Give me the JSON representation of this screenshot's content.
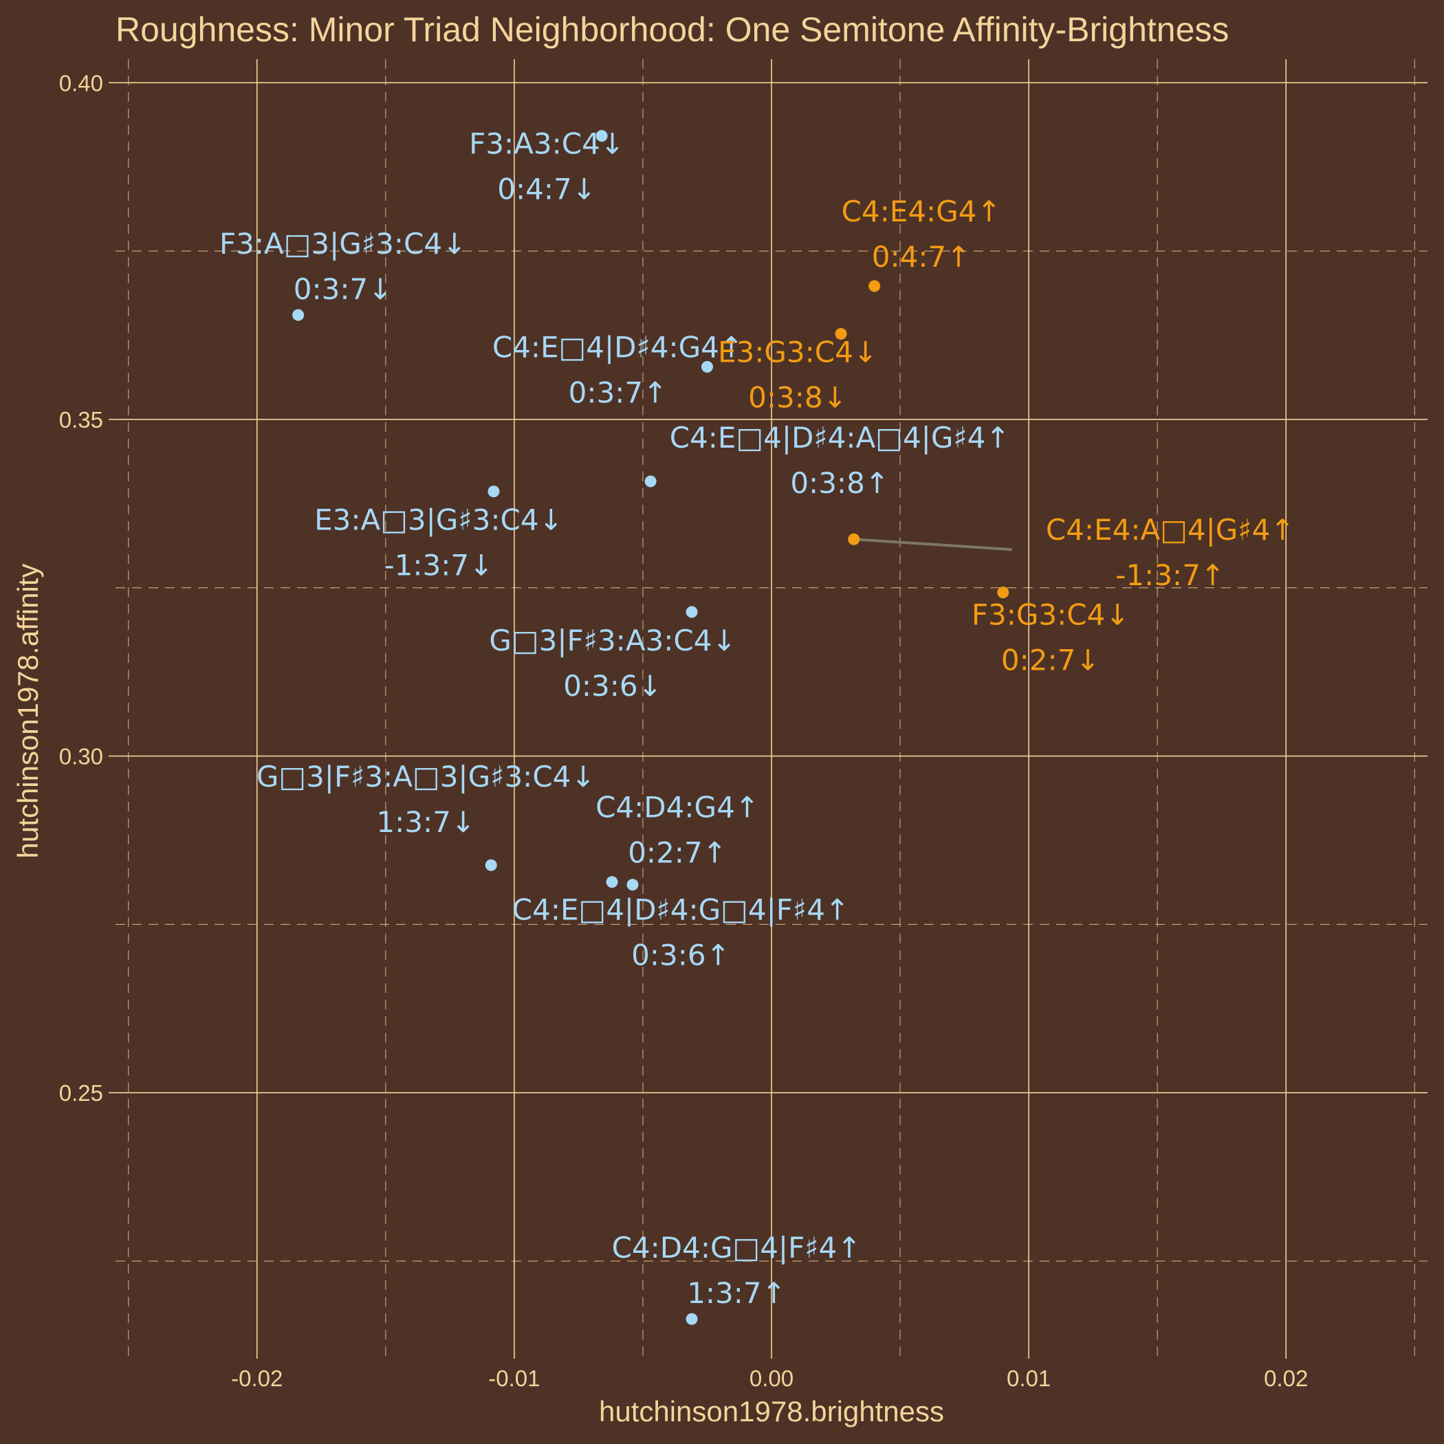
{
  "chart_data": {
    "type": "scatter",
    "title": "Roughness: Minor Triad Neighborhood: One Semitone Affinity-Brightness",
    "xlabel": "hutchinson1978.brightness",
    "ylabel": "hutchinson1978.affinity",
    "xlim": [
      -0.0255,
      0.0255
    ],
    "ylim": [
      0.2105,
      0.4035
    ],
    "x_ticks": [
      -0.02,
      -0.01,
      0.0,
      0.01,
      0.02
    ],
    "x_tick_labels": [
      "-0.02",
      "-0.01",
      "0.00",
      "0.01",
      "0.02"
    ],
    "y_ticks": [
      0.25,
      0.3,
      0.35,
      0.4
    ],
    "y_tick_labels": [
      "0.25",
      "0.30",
      "0.35",
      "0.40"
    ],
    "grid": true,
    "colors": {
      "background": "#4e3226",
      "grid": "#f4d49a",
      "text": "#f4d49a",
      "minor_series": "#a7d8f5",
      "major_series": "#f39c12",
      "connector": "#7d7768"
    },
    "points": [
      {
        "x": -0.0066,
        "y": 0.3921,
        "group": "minor",
        "name": "F3:A3:C4↓",
        "intervals": "0:4:7↓"
      },
      {
        "x": -0.0184,
        "y": 0.3655,
        "group": "minor",
        "name": "F3:A□3|G♯3:C4↓",
        "intervals": "0:3:7↓"
      },
      {
        "x": -0.0025,
        "y": 0.3578,
        "group": "minor",
        "name": "C4:E□4|D♯4:G4↑",
        "intervals": "0:3:7↑"
      },
      {
        "x": -0.0047,
        "y": 0.3408,
        "group": "minor",
        "name": "C4:E□4|D♯4:A□4|G♯4↑",
        "intervals": "0:3:8↑"
      },
      {
        "x": -0.0108,
        "y": 0.3393,
        "group": "minor",
        "name": "E3:A□3|G♯3:C4↓",
        "intervals": "-1:3:7↓"
      },
      {
        "x": -0.0031,
        "y": 0.3214,
        "group": "minor",
        "name": "G□3|F♯3:A3:C4↓",
        "intervals": "0:3:6↓"
      },
      {
        "x": -0.0109,
        "y": 0.2838,
        "group": "minor",
        "name": "G□3|F♯3:A□3|G♯3:C4↓",
        "intervals": "1:3:7↓"
      },
      {
        "x": -0.0062,
        "y": 0.2813,
        "group": "minor",
        "name": "C4:D4:G4↑",
        "intervals": "0:2:7↑"
      },
      {
        "x": -0.0054,
        "y": 0.2809,
        "group": "minor",
        "name": "C4:E□4|D♯4:G□4|F♯4↑",
        "intervals": "0:3:6↑"
      },
      {
        "x": -0.0031,
        "y": 0.2164,
        "group": "minor",
        "name": "C4:D4:G□4|F♯4↑",
        "intervals": "1:3:7↑"
      },
      {
        "x": 0.004,
        "y": 0.3698,
        "group": "major",
        "name": "C4:E4:G4↑",
        "intervals": "0:4:7↑"
      },
      {
        "x": 0.0027,
        "y": 0.3627,
        "group": "major",
        "name": "E3:G3:C4↓",
        "intervals": "0:3:8↓"
      },
      {
        "x": 0.0032,
        "y": 0.3322,
        "group": "major",
        "name": "C4:E4:A□4|G♯4↑",
        "intervals": "-1:3:7↑"
      },
      {
        "x": 0.009,
        "y": 0.3243,
        "group": "major",
        "name": "F3:G3:C4↓",
        "intervals": "0:2:7↓"
      }
    ]
  }
}
